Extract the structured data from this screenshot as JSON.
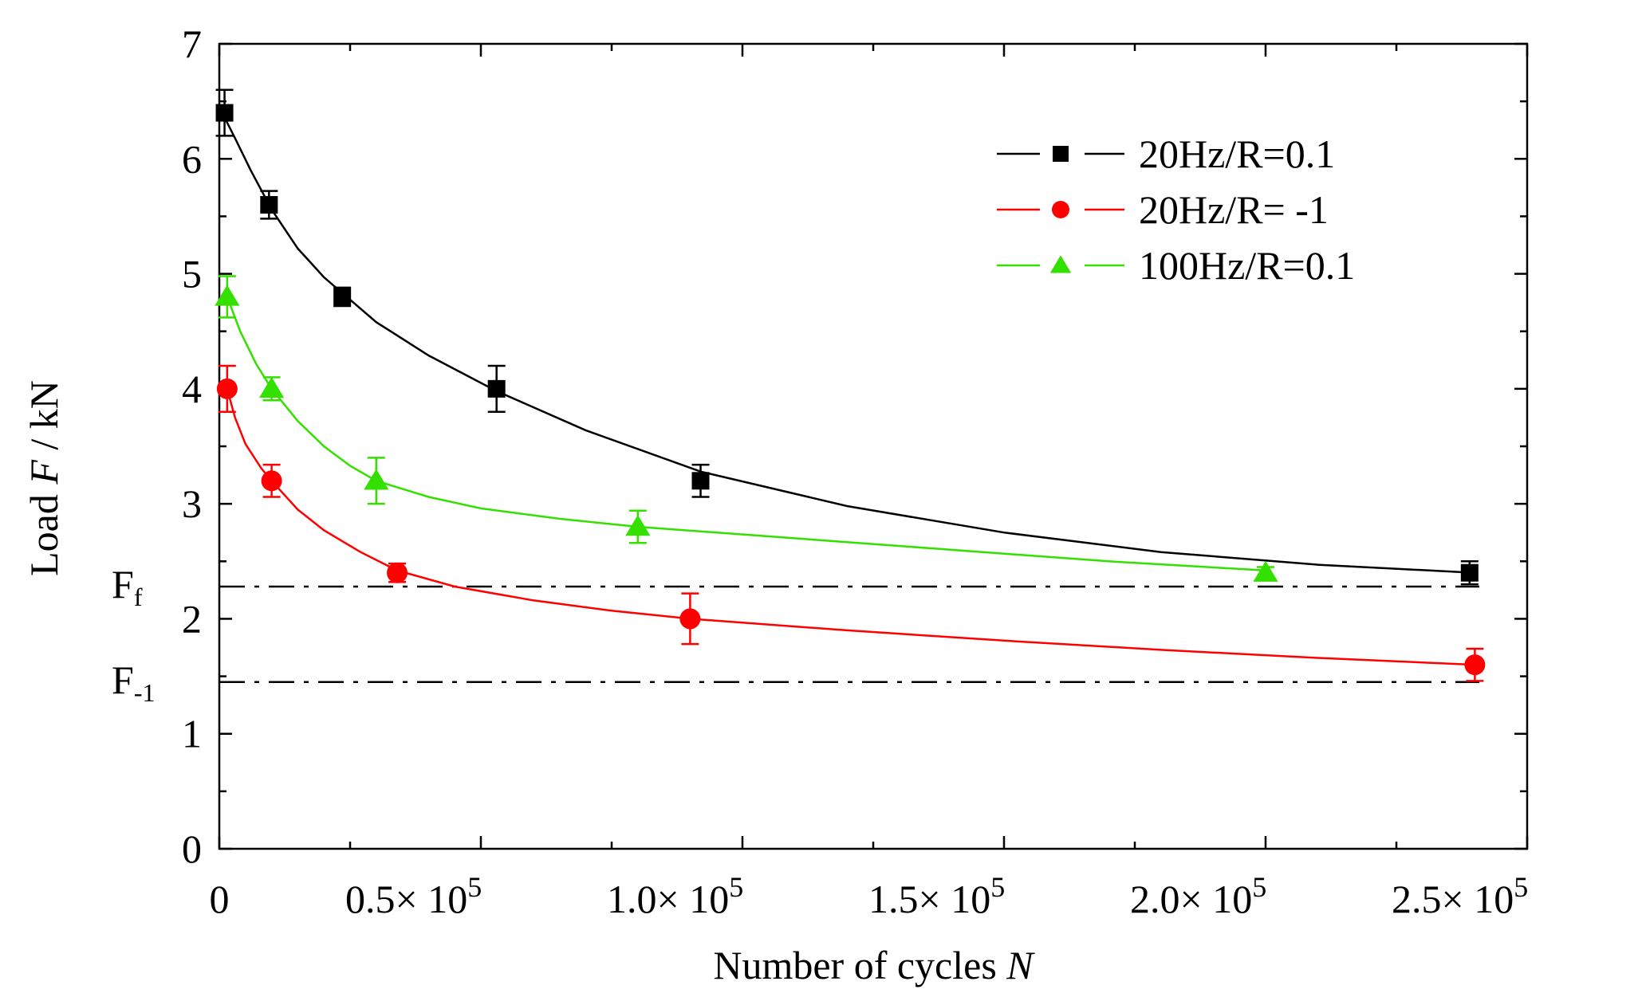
{
  "chart_data": {
    "type": "line",
    "title": "",
    "xlabel": "Number of cycles",
    "xlabel_var": "N",
    "ylabel": "Load",
    "ylabel_var": "F",
    "ylabel_unit": "/ kN",
    "xlim": [
      0,
      250000
    ],
    "ylim": [
      0,
      7
    ],
    "grid": false,
    "legend_position": "top-right",
    "x_ticks": [
      {
        "value": 0,
        "label": "0"
      },
      {
        "value": 50000,
        "label": "0.5× 10",
        "exp": "5"
      },
      {
        "value": 100000,
        "label": "1.0× 10",
        "exp": "5"
      },
      {
        "value": 150000,
        "label": "1.5× 10",
        "exp": "5"
      },
      {
        "value": 200000,
        "label": "2.0× 10",
        "exp": "5"
      },
      {
        "value": 250000,
        "label": "2.5× 10",
        "exp": "5"
      }
    ],
    "y_ticks": [
      "0",
      "1",
      "2",
      "3",
      "4",
      "5",
      "6",
      "7"
    ],
    "series": [
      {
        "name": "20Hz/R=0.1",
        "color": "#000000",
        "marker": "square",
        "points": [
          {
            "x": 1000,
            "y": 6.4,
            "err": 0.2
          },
          {
            "x": 9500,
            "y": 5.6,
            "err": 0.12
          },
          {
            "x": 23500,
            "y": 4.8,
            "err": 0.08
          },
          {
            "x": 53000,
            "y": 4.0,
            "err": 0.2
          },
          {
            "x": 92000,
            "y": 3.2,
            "err": 0.14
          },
          {
            "x": 239000,
            "y": 2.4,
            "err": 0.1
          }
        ],
        "fit": [
          [
            0,
            6.45
          ],
          [
            3000,
            6.18
          ],
          [
            6000,
            5.9
          ],
          [
            10000,
            5.56
          ],
          [
            15000,
            5.22
          ],
          [
            20000,
            4.97
          ],
          [
            30000,
            4.58
          ],
          [
            40000,
            4.29
          ],
          [
            53000,
            3.98
          ],
          [
            70000,
            3.64
          ],
          [
            92000,
            3.28
          ],
          [
            120000,
            2.98
          ],
          [
            150000,
            2.75
          ],
          [
            180000,
            2.58
          ],
          [
            210000,
            2.47
          ],
          [
            240000,
            2.4
          ]
        ]
      },
      {
        "name": "20Hz/R= -1",
        "color": "#ff0000",
        "marker": "circle",
        "points": [
          {
            "x": 1500,
            "y": 4.0,
            "err": 0.2
          },
          {
            "x": 10000,
            "y": 3.2,
            "err": 0.14
          },
          {
            "x": 34000,
            "y": 2.4,
            "err": 0.08
          },
          {
            "x": 90000,
            "y": 2.0,
            "err": 0.22
          },
          {
            "x": 240000,
            "y": 1.6,
            "err": 0.14
          }
        ],
        "fit": [
          [
            1500,
            4.0
          ],
          [
            3000,
            3.75
          ],
          [
            5000,
            3.52
          ],
          [
            8000,
            3.31
          ],
          [
            10000,
            3.2
          ],
          [
            15000,
            2.95
          ],
          [
            20000,
            2.77
          ],
          [
            27000,
            2.58
          ],
          [
            34000,
            2.42
          ],
          [
            45000,
            2.28
          ],
          [
            60000,
            2.16
          ],
          [
            75000,
            2.07
          ],
          [
            90000,
            2.0
          ],
          [
            120000,
            1.9
          ],
          [
            150000,
            1.81
          ],
          [
            180000,
            1.73
          ],
          [
            210000,
            1.66
          ],
          [
            240000,
            1.6
          ]
        ]
      },
      {
        "name": "100Hz/R=0.1",
        "color": "#33e000",
        "marker": "triangle",
        "points": [
          {
            "x": 1500,
            "y": 4.8,
            "err": 0.18
          },
          {
            "x": 10000,
            "y": 4.0,
            "err": 0.1
          },
          {
            "x": 30000,
            "y": 3.2,
            "err": 0.2
          },
          {
            "x": 80000,
            "y": 2.8,
            "err": 0.14
          },
          {
            "x": 200000,
            "y": 2.4,
            "err": 0.05
          }
        ],
        "fit": [
          [
            1500,
            4.8
          ],
          [
            4000,
            4.5
          ],
          [
            7000,
            4.22
          ],
          [
            10000,
            4.0
          ],
          [
            15000,
            3.72
          ],
          [
            20000,
            3.5
          ],
          [
            25000,
            3.33
          ],
          [
            30000,
            3.2
          ],
          [
            40000,
            3.06
          ],
          [
            50000,
            2.96
          ],
          [
            65000,
            2.87
          ],
          [
            80000,
            2.8
          ],
          [
            110000,
            2.7
          ],
          [
            140000,
            2.6
          ],
          [
            170000,
            2.5
          ],
          [
            200000,
            2.42
          ]
        ]
      }
    ],
    "reference_lines": [
      {
        "name": "Ff",
        "main": "F",
        "sub": "f",
        "y": 2.28,
        "style": "dash-dot"
      },
      {
        "name": "F-1",
        "main": "F",
        "sub": "-1",
        "y": 1.45,
        "style": "dash-dot"
      }
    ]
  }
}
